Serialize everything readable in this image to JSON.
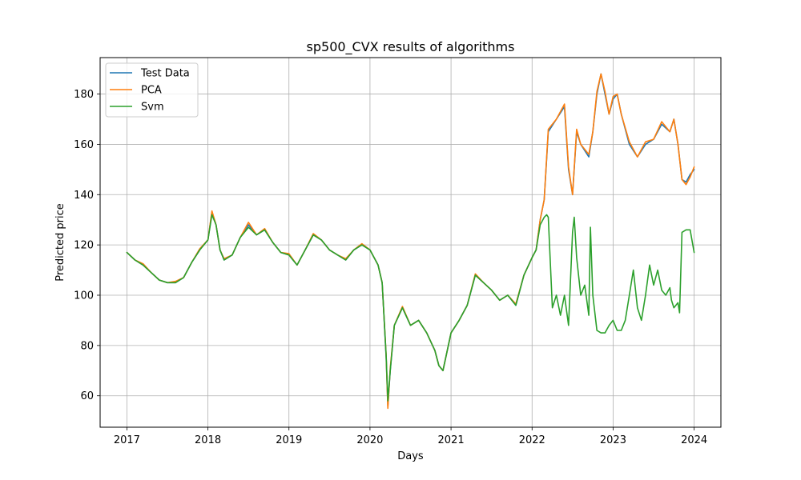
{
  "chart_data": {
    "type": "line",
    "title": "sp500_CVX results of algorithms",
    "xlabel": "Days",
    "ylabel": "Predicted price",
    "xlim": [
      2016.67,
      2024.33
    ],
    "ylim": [
      47.5,
      194.5
    ],
    "xticks": [
      2017,
      2018,
      2019,
      2020,
      2021,
      2022,
      2023,
      2024
    ],
    "xtick_labels": [
      "2017",
      "2018",
      "2019",
      "2020",
      "2021",
      "2022",
      "2023",
      "2024"
    ],
    "yticks": [
      60,
      80,
      100,
      120,
      140,
      160,
      180
    ],
    "ytick_labels": [
      "60",
      "80",
      "100",
      "120",
      "140",
      "160",
      "180"
    ],
    "grid": true,
    "legend_position": "upper-left",
    "series": [
      {
        "name": "Test Data",
        "color": "#1f77b4",
        "x": [
          2017.0,
          2017.1,
          2017.2,
          2017.3,
          2017.4,
          2017.5,
          2017.6,
          2017.7,
          2017.8,
          2017.9,
          2018.0,
          2018.05,
          2018.1,
          2018.15,
          2018.2,
          2018.3,
          2018.4,
          2018.5,
          2018.6,
          2018.7,
          2018.8,
          2018.9,
          2019.0,
          2019.1,
          2019.2,
          2019.3,
          2019.4,
          2019.5,
          2019.6,
          2019.7,
          2019.8,
          2019.9,
          2020.0,
          2020.1,
          2020.15,
          2020.2,
          2020.22,
          2020.25,
          2020.3,
          2020.4,
          2020.5,
          2020.6,
          2020.7,
          2020.8,
          2020.85,
          2020.9,
          2021.0,
          2021.1,
          2021.2,
          2021.3,
          2021.4,
          2021.5,
          2021.6,
          2021.7,
          2021.8,
          2021.9,
          2022.0,
          2022.05,
          2022.1,
          2022.15,
          2022.2,
          2022.3,
          2022.4,
          2022.45,
          2022.5,
          2022.55,
          2022.6,
          2022.7,
          2022.75,
          2022.8,
          2022.85,
          2022.9,
          2022.95,
          2023.0,
          2023.05,
          2023.1,
          2023.2,
          2023.3,
          2023.4,
          2023.5,
          2023.6,
          2023.7,
          2023.75,
          2023.8,
          2023.85,
          2023.9,
          2023.95,
          2024.0
        ],
        "y": [
          117,
          114,
          112,
          109,
          106,
          105,
          105,
          107,
          113,
          118,
          122,
          133,
          128,
          118,
          114,
          116,
          123,
          128,
          124,
          126,
          121,
          117,
          116,
          112,
          118,
          124,
          122,
          118,
          116,
          114,
          118,
          120,
          118,
          112,
          105,
          75,
          56,
          70,
          88,
          95,
          88,
          90,
          85,
          78,
          72,
          70,
          85,
          90,
          96,
          108,
          105,
          102,
          98,
          100,
          96,
          108,
          115,
          118,
          130,
          138,
          165,
          170,
          175,
          150,
          140,
          165,
          160,
          155,
          165,
          180,
          188,
          180,
          172,
          178,
          180,
          172,
          160,
          155,
          160,
          162,
          168,
          165,
          170,
          160,
          146,
          145,
          148,
          150
        ]
      },
      {
        "name": "PCA",
        "color": "#ff7f0e",
        "x": [
          2017.0,
          2017.1,
          2017.2,
          2017.3,
          2017.4,
          2017.5,
          2017.6,
          2017.7,
          2017.8,
          2017.9,
          2018.0,
          2018.05,
          2018.1,
          2018.15,
          2018.2,
          2018.3,
          2018.4,
          2018.5,
          2018.6,
          2018.7,
          2018.8,
          2018.9,
          2019.0,
          2019.1,
          2019.2,
          2019.3,
          2019.4,
          2019.5,
          2019.6,
          2019.7,
          2019.8,
          2019.9,
          2020.0,
          2020.1,
          2020.15,
          2020.2,
          2020.22,
          2020.25,
          2020.3,
          2020.4,
          2020.5,
          2020.6,
          2020.7,
          2020.8,
          2020.85,
          2020.9,
          2021.0,
          2021.1,
          2021.2,
          2021.3,
          2021.4,
          2021.5,
          2021.6,
          2021.7,
          2021.8,
          2021.9,
          2022.0,
          2022.05,
          2022.1,
          2022.15,
          2022.2,
          2022.3,
          2022.4,
          2022.45,
          2022.5,
          2022.55,
          2022.6,
          2022.7,
          2022.75,
          2022.8,
          2022.85,
          2022.9,
          2022.95,
          2023.0,
          2023.05,
          2023.1,
          2023.2,
          2023.3,
          2023.4,
          2023.5,
          2023.6,
          2023.7,
          2023.75,
          2023.8,
          2023.85,
          2023.9,
          2023.95,
          2024.0
        ],
        "y": [
          117,
          114,
          112.5,
          109,
          106,
          105,
          105.5,
          107,
          113,
          118.5,
          122,
          133.5,
          128,
          118,
          114.5,
          116,
          123,
          129,
          124,
          126.5,
          121,
          117,
          116.5,
          112,
          118,
          124.5,
          122,
          118,
          116,
          114.5,
          118,
          120.5,
          118,
          112,
          105,
          76,
          55,
          71,
          88,
          95.5,
          88,
          90,
          85,
          78,
          72,
          70,
          85,
          90,
          96,
          108.5,
          105,
          102,
          98,
          100,
          96.5,
          108,
          115,
          118,
          130,
          138,
          166,
          170,
          176,
          151,
          140,
          166,
          160,
          156,
          165,
          181,
          188,
          181,
          172,
          179,
          180,
          172,
          161,
          155,
          161,
          162,
          169,
          165,
          170,
          160,
          146,
          144,
          147,
          151
        ]
      },
      {
        "name": "Svm",
        "color": "#2ca02c",
        "x": [
          2017.0,
          2017.1,
          2017.2,
          2017.3,
          2017.4,
          2017.5,
          2017.6,
          2017.7,
          2017.8,
          2017.9,
          2018.0,
          2018.05,
          2018.1,
          2018.15,
          2018.2,
          2018.3,
          2018.4,
          2018.5,
          2018.6,
          2018.7,
          2018.8,
          2018.9,
          2019.0,
          2019.1,
          2019.2,
          2019.3,
          2019.4,
          2019.5,
          2019.6,
          2019.7,
          2019.8,
          2019.9,
          2020.0,
          2020.1,
          2020.15,
          2020.2,
          2020.22,
          2020.25,
          2020.3,
          2020.4,
          2020.5,
          2020.6,
          2020.7,
          2020.8,
          2020.85,
          2020.9,
          2021.0,
          2021.1,
          2021.2,
          2021.3,
          2021.4,
          2021.5,
          2021.6,
          2021.7,
          2021.8,
          2021.9,
          2022.0,
          2022.05,
          2022.1,
          2022.15,
          2022.18,
          2022.2,
          2022.25,
          2022.3,
          2022.35,
          2022.4,
          2022.45,
          2022.5,
          2022.52,
          2022.55,
          2022.6,
          2022.65,
          2022.7,
          2022.72,
          2022.75,
          2022.8,
          2022.85,
          2022.9,
          2022.95,
          2023.0,
          2023.05,
          2023.1,
          2023.15,
          2023.2,
          2023.25,
          2023.3,
          2023.35,
          2023.4,
          2023.45,
          2023.5,
          2023.55,
          2023.6,
          2023.65,
          2023.7,
          2023.72,
          2023.75,
          2023.8,
          2023.82,
          2023.85,
          2023.9,
          2023.95,
          2024.0
        ],
        "y": [
          117,
          114,
          112,
          109,
          106,
          105,
          105,
          107,
          113,
          118,
          122,
          132,
          128,
          118,
          114,
          116,
          123,
          127,
          124,
          126,
          121,
          117,
          116,
          112,
          118,
          124,
          122,
          118,
          116,
          114,
          118,
          120,
          118,
          112,
          105,
          76,
          58,
          70,
          88,
          95,
          88,
          90,
          85,
          78,
          72,
          70,
          85,
          90,
          96,
          108,
          105,
          102,
          98,
          100,
          96,
          108,
          115,
          118,
          128,
          131,
          132,
          131,
          95,
          100,
          92,
          100,
          88,
          125,
          131,
          115,
          100,
          104,
          92,
          127,
          100,
          86,
          85,
          85,
          88,
          90,
          86,
          86,
          90,
          100,
          110,
          95,
          90,
          100,
          112,
          104,
          110,
          102,
          100,
          103,
          98,
          95,
          97,
          93,
          125,
          126,
          126,
          117
        ]
      }
    ]
  }
}
